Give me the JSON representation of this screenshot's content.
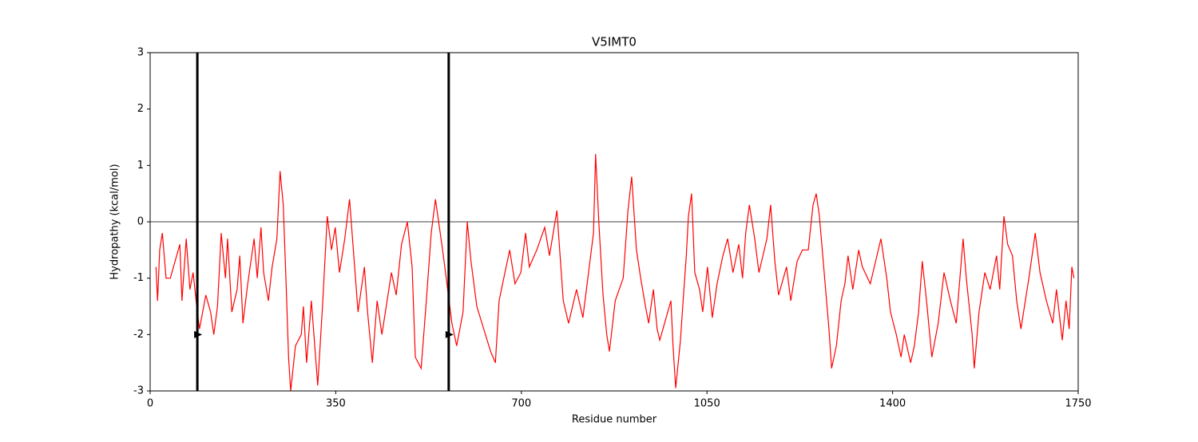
{
  "chart_data": {
    "type": "line",
    "title": "V5IMT0",
    "x_label": "Residue number",
    "y_label": "Hydropathy (kcal/mol)",
    "xlim": [
      0,
      1750
    ],
    "ylim": [
      -3,
      3
    ],
    "xticks": [
      0,
      350,
      700,
      1050,
      1400,
      1750
    ],
    "yticks": [
      -3,
      -2,
      -1,
      0,
      1,
      2,
      3
    ],
    "hline": 0,
    "vlines": [
      89,
      563
    ],
    "markers": {
      "x": [
        89,
        563
      ],
      "y": [
        -2,
        -2
      ],
      "color": "#000000"
    },
    "x": [
      11,
      14,
      18,
      23,
      30,
      38,
      56,
      60,
      68,
      75,
      81,
      89,
      93,
      105,
      114,
      120,
      127,
      134,
      142,
      146,
      154,
      164,
      169,
      175,
      184,
      196,
      202,
      209,
      214,
      223,
      230,
      239,
      245,
      251,
      256,
      261,
      265,
      274,
      285,
      289,
      295,
      304,
      316,
      325,
      334,
      342,
      349,
      357,
      367,
      376,
      384,
      392,
      404,
      410,
      419,
      428,
      437,
      455,
      464,
      474,
      485,
      494,
      500,
      511,
      520,
      530,
      538,
      550,
      557,
      569,
      578,
      590,
      598,
      605,
      616,
      642,
      651,
      658,
      669,
      678,
      688,
      699,
      708,
      715,
      729,
      744,
      753,
      767,
      779,
      789,
      804,
      816,
      828,
      836,
      840,
      846,
      854,
      861,
      866,
      877,
      892,
      901,
      908,
      917,
      925,
      934,
      940,
      949,
      956,
      961,
      970,
      982,
      986,
      991,
      1000,
      1005,
      1011,
      1015,
      1021,
      1027,
      1036,
      1042,
      1051,
      1060,
      1069,
      1080,
      1089,
      1099,
      1110,
      1117,
      1123,
      1130,
      1140,
      1148,
      1163,
      1170,
      1178,
      1185,
      1200,
      1208,
      1220,
      1230,
      1241,
      1250,
      1256,
      1262,
      1271,
      1280,
      1285,
      1294,
      1303,
      1310,
      1316,
      1325,
      1336,
      1343,
      1358,
      1378,
      1389,
      1396,
      1407,
      1416,
      1422,
      1434,
      1441,
      1449,
      1456,
      1464,
      1474,
      1486,
      1497,
      1509,
      1520,
      1533,
      1539,
      1550,
      1554,
      1563,
      1574,
      1584,
      1596,
      1602,
      1610,
      1617,
      1626,
      1634,
      1642,
      1657,
      1669,
      1678,
      1690,
      1702,
      1709,
      1720,
      1727,
      1733,
      1738,
      1742
    ],
    "series": [
      {
        "name": "V5IMT0",
        "color": "#ff0000",
        "values": [
          -0.8,
          -1.4,
          -0.5,
          -0.2,
          -1.0,
          -1.0,
          -0.4,
          -1.4,
          -0.3,
          -1.2,
          -0.9,
          -1.6,
          -1.9,
          -1.3,
          -1.6,
          -2.0,
          -1.5,
          -0.2,
          -1.0,
          -0.3,
          -1.6,
          -1.2,
          -0.6,
          -1.8,
          -1.1,
          -0.3,
          -1.0,
          -0.1,
          -0.9,
          -1.4,
          -0.8,
          -0.3,
          0.9,
          0.3,
          -1.0,
          -2.4,
          -3.0,
          -2.2,
          -2.0,
          -1.5,
          -2.5,
          -1.4,
          -2.9,
          -1.5,
          0.1,
          -0.5,
          -0.1,
          -0.9,
          -0.3,
          0.4,
          -0.6,
          -1.6,
          -0.8,
          -1.6,
          -2.5,
          -1.4,
          -2.0,
          -0.9,
          -1.3,
          -0.4,
          0.0,
          -0.8,
          -2.4,
          -2.6,
          -1.5,
          -0.2,
          0.4,
          -0.4,
          -0.9,
          -1.8,
          -2.2,
          -1.6,
          0.0,
          -0.7,
          -1.5,
          -2.3,
          -2.5,
          -1.4,
          -0.9,
          -0.5,
          -1.1,
          -0.9,
          -0.2,
          -0.8,
          -0.5,
          -0.1,
          -0.6,
          0.2,
          -1.4,
          -1.8,
          -1.2,
          -1.7,
          -0.8,
          -0.2,
          1.2,
          0.0,
          -1.3,
          -2.0,
          -2.3,
          -1.4,
          -1.0,
          0.2,
          0.8,
          -0.5,
          -1.0,
          -1.5,
          -1.8,
          -1.2,
          -1.9,
          -2.1,
          -1.8,
          -1.4,
          -2.2,
          -2.95,
          -2.1,
          -1.4,
          -0.6,
          0.1,
          0.5,
          -0.9,
          -1.2,
          -1.6,
          -0.8,
          -1.7,
          -1.1,
          -0.6,
          -0.3,
          -0.9,
          -0.4,
          -1.0,
          -0.2,
          0.3,
          -0.3,
          -0.9,
          -0.3,
          0.3,
          -0.7,
          -1.3,
          -0.8,
          -1.4,
          -0.7,
          -0.5,
          -0.5,
          0.3,
          0.5,
          0.1,
          -0.9,
          -1.9,
          -2.6,
          -2.2,
          -1.4,
          -1.1,
          -0.6,
          -1.2,
          -0.5,
          -0.8,
          -1.1,
          -0.3,
          -1.0,
          -1.6,
          -2.0,
          -2.4,
          -2.0,
          -2.5,
          -2.2,
          -1.6,
          -0.7,
          -1.4,
          -2.4,
          -1.8,
          -0.9,
          -1.4,
          -1.8,
          -0.3,
          -1.0,
          -2.0,
          -2.6,
          -1.6,
          -0.9,
          -1.2,
          -0.6,
          -1.2,
          0.1,
          -0.4,
          -0.6,
          -1.4,
          -1.9,
          -1.0,
          -0.2,
          -0.9,
          -1.4,
          -1.8,
          -1.2,
          -2.1,
          -1.4,
          -1.9,
          -0.8,
          -1.0
        ]
      }
    ]
  }
}
